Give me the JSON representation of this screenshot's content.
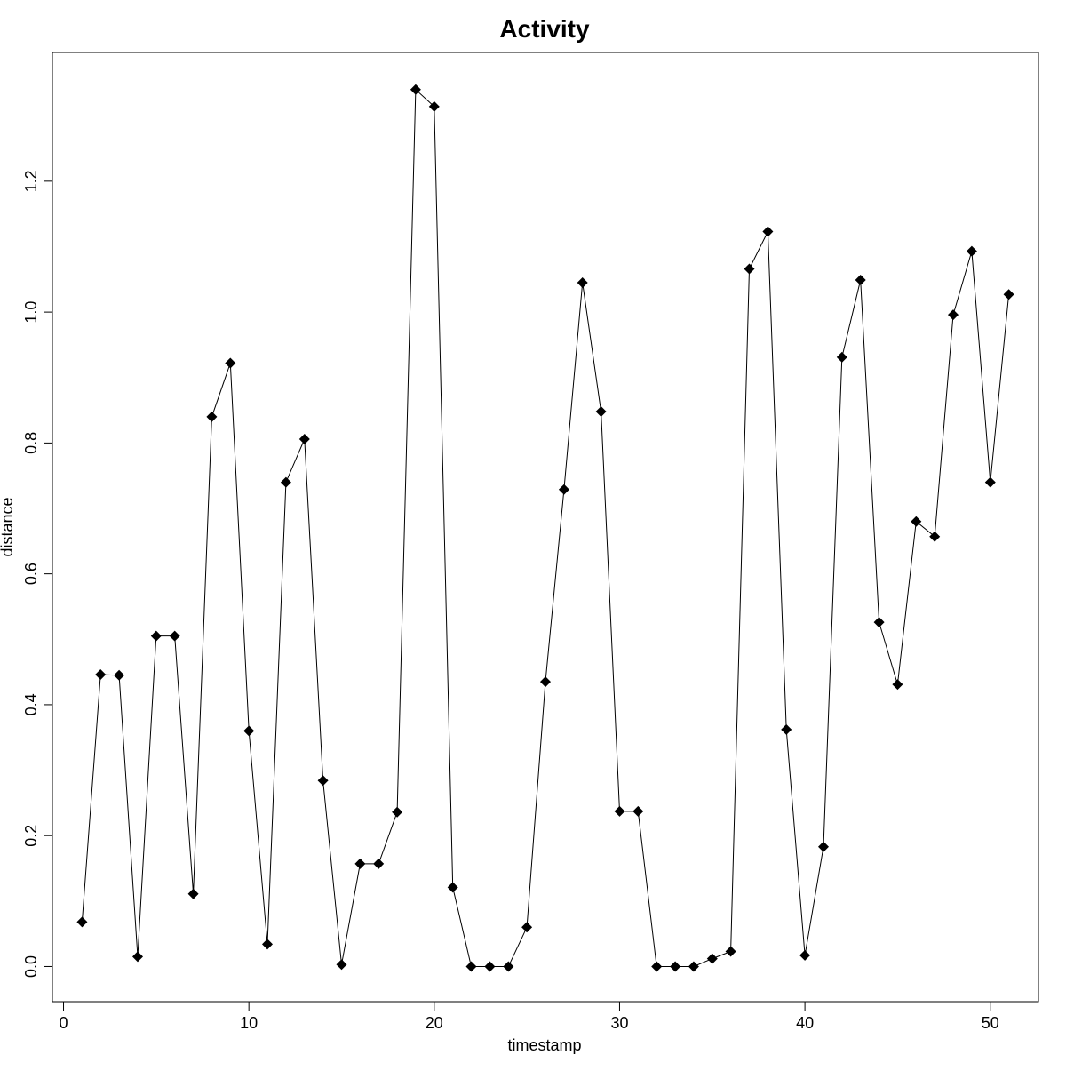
{
  "chart_data": {
    "type": "line",
    "title": "Activity",
    "xlabel": "timestamp",
    "ylabel": "distance",
    "xlim": [
      -0.6,
      52.6
    ],
    "ylim": [
      -0.0537,
      1.3967
    ],
    "x_ticks": [
      0,
      10,
      20,
      30,
      40,
      50
    ],
    "x_tick_labels": [
      "0",
      "10",
      "20",
      "30",
      "40",
      "50"
    ],
    "y_ticks": [
      0.0,
      0.2,
      0.4,
      0.6,
      0.8,
      1.0,
      1.2
    ],
    "y_tick_labels": [
      "0.0",
      "0.2",
      "0.4",
      "0.6",
      "0.8",
      "1.0",
      "1.2"
    ],
    "grid": false,
    "marker": "diamond",
    "line_color": "#000000",
    "marker_color": "#000000",
    "series": [
      {
        "x": [
          1,
          2,
          3,
          4,
          5,
          6,
          7,
          8,
          9,
          10,
          11,
          12,
          13,
          14,
          15,
          16,
          17,
          18,
          19,
          20,
          21,
          22,
          23,
          24,
          25,
          26,
          27,
          28,
          29,
          30,
          31,
          32,
          33,
          34,
          35,
          36,
          37,
          38,
          39,
          40,
          41,
          42,
          43,
          44,
          45,
          46,
          47,
          48,
          49,
          50,
          51
        ],
        "values": [
          0.068,
          0.446,
          0.445,
          0.015,
          0.505,
          0.505,
          0.111,
          0.84,
          0.922,
          0.36,
          0.034,
          0.74,
          0.806,
          0.284,
          0.003,
          0.157,
          0.157,
          0.236,
          1.34,
          1.314,
          0.121,
          0.0,
          0.0,
          0.0,
          0.06,
          0.435,
          0.729,
          1.045,
          0.848,
          0.237,
          0.237,
          0.0,
          0.0,
          0.0,
          0.012,
          0.023,
          1.066,
          1.123,
          0.362,
          0.017,
          0.183,
          0.931,
          1.049,
          0.526,
          0.431,
          0.68,
          0.657,
          0.996,
          1.093,
          0.74,
          1.027
        ]
      }
    ]
  }
}
